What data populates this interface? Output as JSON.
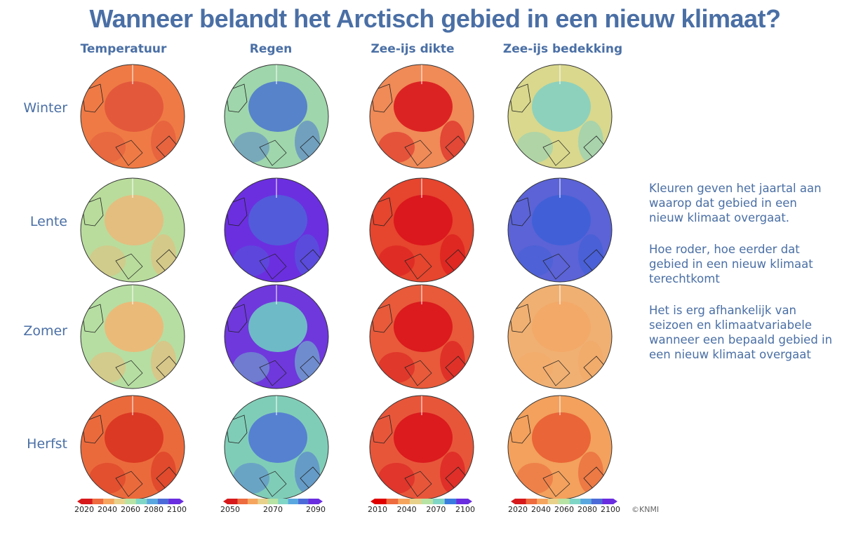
{
  "title": "Wanneer belandt het Arctisch gebied in een nieuw klimaat?",
  "columns": [
    "Temperatuur",
    "Regen",
    "Zee-ijs dikte",
    "Zee-ijs bedekking"
  ],
  "rows": [
    "Winter",
    "Lente",
    "Zomer",
    "Herfst"
  ],
  "legends": [
    {
      "ticks": [
        "2020",
        "2040",
        "2060",
        "2080",
        "2100"
      ],
      "colors": [
        "#d7191c",
        "#ee6a3f",
        "#f6a55e",
        "#e8d28b",
        "#b7e3a4",
        "#80d6c6",
        "#5aa7e0",
        "#4d6bd8",
        "#6a2de0"
      ]
    },
    {
      "ticks": [
        "2050",
        "2070",
        "2090"
      ],
      "colors": [
        "#d7191c",
        "#ee6a3f",
        "#f6a55e",
        "#e8d28b",
        "#b7e3a4",
        "#80d6c6",
        "#5aa7e0",
        "#4d6bd8",
        "#6a2de0"
      ]
    },
    {
      "ticks": [
        "2010",
        "2040",
        "2070",
        "2100"
      ],
      "colors": [
        "#e00000",
        "#ee6a3f",
        "#f6a55e",
        "#e8d28b",
        "#b7e3a4",
        "#80d6c6",
        "#3a7be0",
        "#6a2de0"
      ]
    },
    {
      "ticks": [
        "2020",
        "2040",
        "2060",
        "2080",
        "2100"
      ],
      "colors": [
        "#d7191c",
        "#ee6a3f",
        "#f6a55e",
        "#e8d28b",
        "#b7e3a4",
        "#80d6c6",
        "#5aa7e0",
        "#4d6bd8",
        "#6a2de0"
      ]
    }
  ],
  "notes": [
    "Kleuren geven het jaartal aan waarop dat gebied in een nieuw klimaat overgaat.",
    "Hoe roder, hoe eerder dat gebied in een nieuw klimaat terechtkomt",
    "Het is erg afhankelijk van seizoen en klimaatvariabele wanneer een bepaald gebied in een nieuw klimaat overgaat"
  ],
  "credit": "©KNMI",
  "colors": {
    "accent": "#4a6fa5"
  },
  "maps": [
    [
      "#ef7a45",
      "#9fd6ab",
      "#f08a57",
      "#d9d88d"
    ],
    [
      "#b9dc9c",
      "#6b2fe0",
      "#e6452e",
      "#5b63d6"
    ],
    [
      "#b6dea2",
      "#6f38dd",
      "#e85a3a",
      "#f0b072"
    ],
    [
      "#eb6a3c",
      "#80cdb7",
      "#e8563a",
      "#f3a15d"
    ]
  ],
  "map_accents": [
    [
      "#e0523a",
      "#4a74cf",
      "#d8101a",
      "#7fd0c4"
    ],
    [
      "#ebb97a",
      "#4d63d8",
      "#d8101a",
      "#3d5fd8"
    ],
    [
      "#f3b472",
      "#6fd1c2",
      "#d8101a",
      "#f3a866"
    ],
    [
      "#d8301f",
      "#4f73d6",
      "#d8101a",
      "#e85a30"
    ]
  ]
}
